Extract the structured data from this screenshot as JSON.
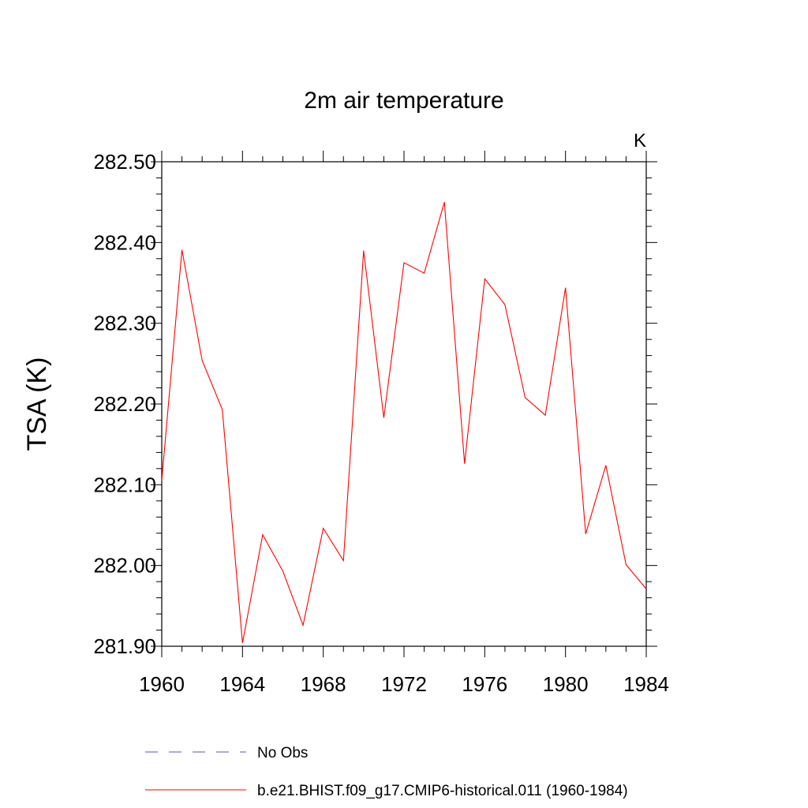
{
  "chart_data": {
    "type": "line",
    "title": "2m air temperature",
    "ylabel": "TSA  (K)",
    "units": "K",
    "xlim": [
      1960,
      1984
    ],
    "ylim": [
      281.9,
      282.5
    ],
    "xticks": [
      1960,
      1964,
      1968,
      1972,
      1976,
      1980,
      1984
    ],
    "xtick_labels": [
      "1960",
      "1964",
      "1968",
      "1972",
      "1976",
      "1980",
      "1984"
    ],
    "yticks": [
      281.9,
      282.0,
      282.1,
      282.2,
      282.3,
      282.4,
      282.5
    ],
    "ytick_labels": [
      "281.90",
      "282.00",
      "282.10",
      "282.20",
      "282.30",
      "282.40",
      "282.50"
    ],
    "grid": false,
    "legend_position": "bottom",
    "series": [
      {
        "name": "No Obs",
        "style": "dashed",
        "color": "#5a5aa0",
        "x": [],
        "values": []
      },
      {
        "name": "b.e21.BHIST.f09_g17.CMIP6-historical.011 (1960-1984)",
        "style": "solid",
        "color": "#ff0000",
        "x": [
          1960,
          1961,
          1962,
          1963,
          1964,
          1965,
          1966,
          1967,
          1968,
          1969,
          1970,
          1971,
          1972,
          1973,
          1974,
          1975,
          1976,
          1977,
          1978,
          1979,
          1980,
          1981,
          1982,
          1983,
          1984
        ],
        "values": [
          282.105,
          282.391,
          282.254,
          282.193,
          281.904,
          282.038,
          281.993,
          281.926,
          282.046,
          282.006,
          282.39,
          282.183,
          282.375,
          282.362,
          282.45,
          282.126,
          282.355,
          282.323,
          282.208,
          282.186,
          282.344,
          282.039,
          282.124,
          282.001,
          281.971
        ]
      }
    ]
  }
}
